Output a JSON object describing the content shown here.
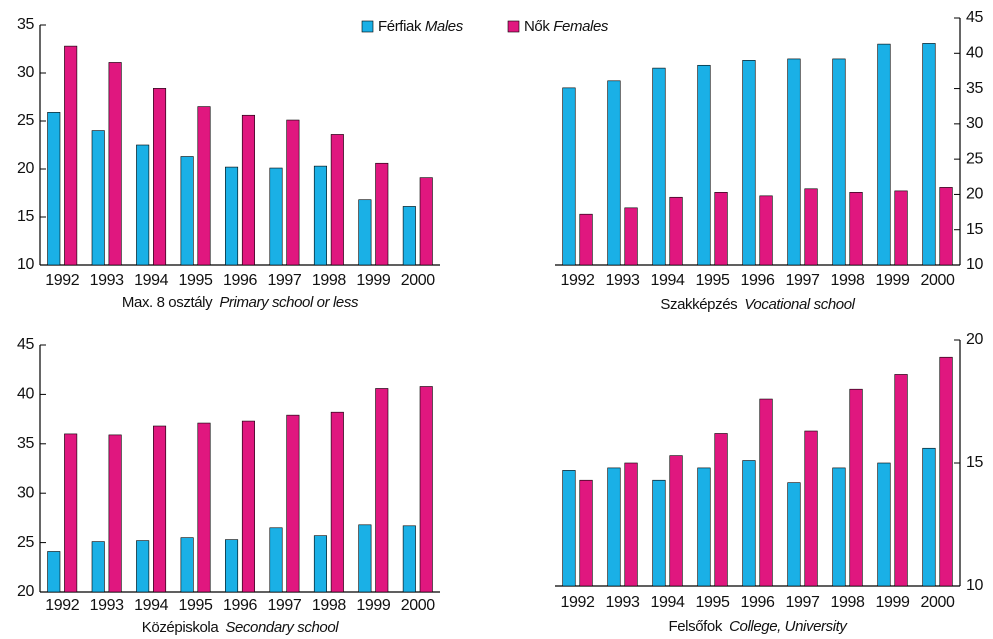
{
  "chart_data": [
    {
      "type": "bar",
      "title": "Max. 8 osztály",
      "subtitle": "Primary school or less",
      "y_axis_side": "left",
      "categories": [
        "1992",
        "1993",
        "1994",
        "1995",
        "1996",
        "1997",
        "1998",
        "1999",
        "2000"
      ],
      "ylim": [
        10,
        35
      ],
      "yticks": [
        10,
        15,
        20,
        25,
        30,
        35
      ],
      "series": [
        {
          "name": "Férfiak",
          "name_en": "Males",
          "color": "#1ab0e6",
          "values": [
            25.9,
            24.0,
            22.5,
            21.3,
            20.2,
            20.1,
            20.3,
            16.8,
            16.1
          ]
        },
        {
          "name": "Nők",
          "name_en": "Females",
          "color": "#e0177f",
          "values": [
            32.8,
            31.1,
            28.4,
            26.5,
            25.6,
            25.1,
            23.6,
            20.6,
            19.1
          ]
        }
      ]
    },
    {
      "type": "bar",
      "title": "Szakképzés",
      "subtitle": "Vocational school",
      "y_axis_side": "right",
      "categories": [
        "1992",
        "1993",
        "1994",
        "1995",
        "1996",
        "1997",
        "1998",
        "1999",
        "2000"
      ],
      "ylim": [
        10,
        45
      ],
      "yticks": [
        10,
        15,
        20,
        25,
        30,
        35,
        40,
        45
      ],
      "series": [
        {
          "color": "#1ab0e6",
          "values": [
            35.1,
            36.1,
            37.9,
            38.3,
            39.0,
            39.2,
            39.2,
            41.3,
            41.4
          ]
        },
        {
          "color": "#e0177f",
          "values": [
            17.2,
            18.1,
            19.6,
            20.3,
            19.8,
            20.8,
            20.3,
            20.5,
            21.0
          ]
        }
      ]
    },
    {
      "type": "bar",
      "title": "Középiskola",
      "subtitle": "Secondary school",
      "y_axis_side": "left",
      "categories": [
        "1992",
        "1993",
        "1994",
        "1995",
        "1996",
        "1997",
        "1998",
        "1999",
        "2000"
      ],
      "ylim": [
        20,
        45
      ],
      "yticks": [
        20,
        25,
        30,
        35,
        40,
        45
      ],
      "series": [
        {
          "color": "#1ab0e6",
          "values": [
            24.1,
            25.1,
            25.2,
            25.5,
            25.3,
            26.5,
            25.7,
            26.8,
            26.7
          ]
        },
        {
          "color": "#e0177f",
          "values": [
            36.0,
            35.9,
            36.8,
            37.1,
            37.3,
            37.9,
            38.2,
            40.6,
            40.8
          ]
        }
      ]
    },
    {
      "type": "bar",
      "title": "Felsőfok",
      "subtitle": "College, University",
      "y_axis_side": "right",
      "categories": [
        "1992",
        "1993",
        "1994",
        "1995",
        "1996",
        "1997",
        "1998",
        "1999",
        "2000"
      ],
      "ylim": [
        10,
        20
      ],
      "yticks": [
        10,
        15,
        20
      ],
      "series": [
        {
          "color": "#1ab0e6",
          "values": [
            14.7,
            14.8,
            14.3,
            14.8,
            15.1,
            14.2,
            14.8,
            15.0,
            15.6
          ]
        },
        {
          "color": "#e0177f",
          "values": [
            14.3,
            15.0,
            15.3,
            16.2,
            17.6,
            16.3,
            18.0,
            18.6,
            19.3
          ]
        }
      ]
    }
  ]
}
